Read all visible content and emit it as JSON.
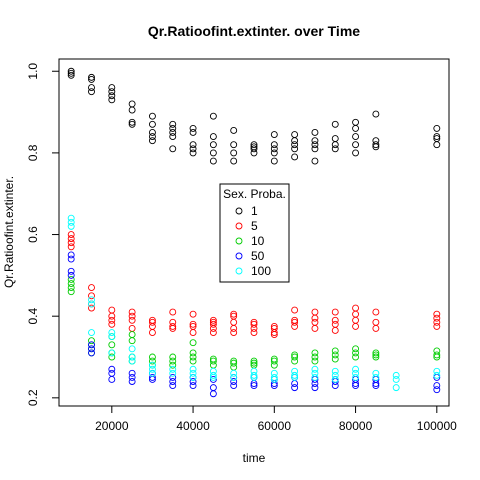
{
  "chart_data": {
    "type": "scatter",
    "title": "Qr.Ratioofint.extinter. over Time",
    "xlabel": "time",
    "ylabel": "Qr.Ratioofint.extinter.",
    "xlim": [
      7000,
      103000
    ],
    "ylim": [
      0.18,
      1.03
    ],
    "xticks": [
      20000,
      40000,
      60000,
      80000,
      100000
    ],
    "yticks": [
      0.2,
      0.4,
      0.6,
      0.8,
      1.0
    ],
    "ytick_labels": [
      "0.2",
      "0.4",
      "0.6",
      "0.8",
      "1.0"
    ],
    "grid": false,
    "legend": {
      "title": "Sex. Proba.",
      "placement": "center"
    },
    "series": [
      {
        "name": "1",
        "color": "#000000",
        "points": [
          [
            10000,
            1.0
          ],
          [
            10000,
            0.995
          ],
          [
            10000,
            0.99
          ],
          [
            15000,
            0.985
          ],
          [
            15000,
            0.98
          ],
          [
            15000,
            0.96
          ],
          [
            15000,
            0.95
          ],
          [
            20000,
            0.96
          ],
          [
            20000,
            0.95
          ],
          [
            20000,
            0.94
          ],
          [
            20000,
            0.93
          ],
          [
            25000,
            0.92
          ],
          [
            25000,
            0.905
          ],
          [
            25000,
            0.875
          ],
          [
            25000,
            0.87
          ],
          [
            30000,
            0.89
          ],
          [
            30000,
            0.87
          ],
          [
            30000,
            0.85
          ],
          [
            30000,
            0.84
          ],
          [
            30000,
            0.83
          ],
          [
            35000,
            0.87
          ],
          [
            35000,
            0.86
          ],
          [
            35000,
            0.85
          ],
          [
            35000,
            0.84
          ],
          [
            35000,
            0.81
          ],
          [
            40000,
            0.86
          ],
          [
            40000,
            0.85
          ],
          [
            40000,
            0.82
          ],
          [
            40000,
            0.81
          ],
          [
            40000,
            0.8
          ],
          [
            45000,
            0.89
          ],
          [
            45000,
            0.84
          ],
          [
            45000,
            0.82
          ],
          [
            45000,
            0.8
          ],
          [
            45000,
            0.78
          ],
          [
            50000,
            0.855
          ],
          [
            50000,
            0.82
          ],
          [
            50000,
            0.8
          ],
          [
            50000,
            0.78
          ],
          [
            55000,
            0.82
          ],
          [
            55000,
            0.815
          ],
          [
            55000,
            0.81
          ],
          [
            55000,
            0.8
          ],
          [
            60000,
            0.845
          ],
          [
            60000,
            0.82
          ],
          [
            60000,
            0.81
          ],
          [
            60000,
            0.8
          ],
          [
            60000,
            0.78
          ],
          [
            65000,
            0.845
          ],
          [
            65000,
            0.83
          ],
          [
            65000,
            0.82
          ],
          [
            65000,
            0.81
          ],
          [
            65000,
            0.79
          ],
          [
            70000,
            0.85
          ],
          [
            70000,
            0.83
          ],
          [
            70000,
            0.82
          ],
          [
            70000,
            0.81
          ],
          [
            70000,
            0.78
          ],
          [
            75000,
            0.87
          ],
          [
            75000,
            0.835
          ],
          [
            75000,
            0.82
          ],
          [
            75000,
            0.81
          ],
          [
            80000,
            0.875
          ],
          [
            80000,
            0.86
          ],
          [
            80000,
            0.84
          ],
          [
            80000,
            0.82
          ],
          [
            80000,
            0.8
          ],
          [
            85000,
            0.895
          ],
          [
            85000,
            0.83
          ],
          [
            85000,
            0.82
          ],
          [
            85000,
            0.815
          ],
          [
            100000,
            0.86
          ],
          [
            100000,
            0.84
          ],
          [
            100000,
            0.835
          ],
          [
            100000,
            0.82
          ]
        ]
      },
      {
        "name": "5",
        "color": "#ff0000",
        "points": [
          [
            10000,
            0.6
          ],
          [
            10000,
            0.59
          ],
          [
            10000,
            0.58
          ],
          [
            10000,
            0.57
          ],
          [
            15000,
            0.47
          ],
          [
            15000,
            0.45
          ],
          [
            15000,
            0.43
          ],
          [
            15000,
            0.42
          ],
          [
            20000,
            0.415
          ],
          [
            20000,
            0.4
          ],
          [
            20000,
            0.39
          ],
          [
            20000,
            0.38
          ],
          [
            25000,
            0.41
          ],
          [
            25000,
            0.4
          ],
          [
            25000,
            0.39
          ],
          [
            25000,
            0.37
          ],
          [
            30000,
            0.39
          ],
          [
            30000,
            0.385
          ],
          [
            30000,
            0.375
          ],
          [
            30000,
            0.36
          ],
          [
            35000,
            0.41
          ],
          [
            35000,
            0.385
          ],
          [
            35000,
            0.375
          ],
          [
            35000,
            0.37
          ],
          [
            40000,
            0.405
          ],
          [
            40000,
            0.38
          ],
          [
            40000,
            0.375
          ],
          [
            40000,
            0.36
          ],
          [
            45000,
            0.39
          ],
          [
            45000,
            0.385
          ],
          [
            45000,
            0.38
          ],
          [
            45000,
            0.37
          ],
          [
            45000,
            0.36
          ],
          [
            50000,
            0.405
          ],
          [
            50000,
            0.4
          ],
          [
            50000,
            0.385
          ],
          [
            50000,
            0.37
          ],
          [
            50000,
            0.36
          ],
          [
            55000,
            0.385
          ],
          [
            55000,
            0.38
          ],
          [
            55000,
            0.37
          ],
          [
            55000,
            0.36
          ],
          [
            60000,
            0.375
          ],
          [
            60000,
            0.37
          ],
          [
            60000,
            0.36
          ],
          [
            60000,
            0.355
          ],
          [
            65000,
            0.415
          ],
          [
            65000,
            0.39
          ],
          [
            65000,
            0.385
          ],
          [
            65000,
            0.375
          ],
          [
            70000,
            0.41
          ],
          [
            70000,
            0.395
          ],
          [
            70000,
            0.385
          ],
          [
            70000,
            0.37
          ],
          [
            75000,
            0.41
          ],
          [
            75000,
            0.39
          ],
          [
            75000,
            0.38
          ],
          [
            75000,
            0.365
          ],
          [
            80000,
            0.42
          ],
          [
            80000,
            0.405
          ],
          [
            80000,
            0.39
          ],
          [
            80000,
            0.375
          ],
          [
            85000,
            0.41
          ],
          [
            85000,
            0.385
          ],
          [
            85000,
            0.37
          ],
          [
            100000,
            0.405
          ],
          [
            100000,
            0.395
          ],
          [
            100000,
            0.385
          ],
          [
            100000,
            0.375
          ]
        ]
      },
      {
        "name": "10",
        "color": "#00cd00",
        "points": [
          [
            10000,
            0.49
          ],
          [
            10000,
            0.48
          ],
          [
            10000,
            0.47
          ],
          [
            10000,
            0.46
          ],
          [
            15000,
            0.34
          ],
          [
            15000,
            0.33
          ],
          [
            15000,
            0.32
          ],
          [
            15000,
            0.31
          ],
          [
            20000,
            0.35
          ],
          [
            20000,
            0.33
          ],
          [
            20000,
            0.31
          ],
          [
            20000,
            0.3
          ],
          [
            25000,
            0.355
          ],
          [
            25000,
            0.34
          ],
          [
            25000,
            0.3
          ],
          [
            25000,
            0.29
          ],
          [
            30000,
            0.3
          ],
          [
            30000,
            0.29
          ],
          [
            30000,
            0.28
          ],
          [
            35000,
            0.3
          ],
          [
            35000,
            0.29
          ],
          [
            35000,
            0.28
          ],
          [
            40000,
            0.335
          ],
          [
            40000,
            0.31
          ],
          [
            40000,
            0.3
          ],
          [
            40000,
            0.29
          ],
          [
            45000,
            0.295
          ],
          [
            45000,
            0.29
          ],
          [
            45000,
            0.28
          ],
          [
            50000,
            0.29
          ],
          [
            50000,
            0.285
          ],
          [
            50000,
            0.275
          ],
          [
            55000,
            0.29
          ],
          [
            55000,
            0.285
          ],
          [
            55000,
            0.28
          ],
          [
            60000,
            0.295
          ],
          [
            60000,
            0.29
          ],
          [
            60000,
            0.28
          ],
          [
            65000,
            0.305
          ],
          [
            65000,
            0.3
          ],
          [
            65000,
            0.29
          ],
          [
            70000,
            0.31
          ],
          [
            70000,
            0.3
          ],
          [
            70000,
            0.29
          ],
          [
            75000,
            0.315
          ],
          [
            75000,
            0.305
          ],
          [
            75000,
            0.295
          ],
          [
            80000,
            0.32
          ],
          [
            80000,
            0.31
          ],
          [
            80000,
            0.3
          ],
          [
            85000,
            0.31
          ],
          [
            85000,
            0.305
          ],
          [
            85000,
            0.3
          ],
          [
            100000,
            0.315
          ],
          [
            100000,
            0.305
          ],
          [
            100000,
            0.3
          ]
        ]
      },
      {
        "name": "50",
        "color": "#0000ff",
        "points": [
          [
            10000,
            0.55
          ],
          [
            10000,
            0.54
          ],
          [
            10000,
            0.51
          ],
          [
            10000,
            0.5
          ],
          [
            15000,
            0.33
          ],
          [
            15000,
            0.32
          ],
          [
            15000,
            0.31
          ],
          [
            20000,
            0.27
          ],
          [
            20000,
            0.26
          ],
          [
            20000,
            0.245
          ],
          [
            25000,
            0.26
          ],
          [
            25000,
            0.25
          ],
          [
            25000,
            0.24
          ],
          [
            30000,
            0.26
          ],
          [
            30000,
            0.25
          ],
          [
            30000,
            0.245
          ],
          [
            35000,
            0.25
          ],
          [
            35000,
            0.24
          ],
          [
            35000,
            0.23
          ],
          [
            40000,
            0.25
          ],
          [
            40000,
            0.24
          ],
          [
            40000,
            0.23
          ],
          [
            45000,
            0.245
          ],
          [
            45000,
            0.225
          ],
          [
            45000,
            0.21
          ],
          [
            50000,
            0.25
          ],
          [
            50000,
            0.24
          ],
          [
            50000,
            0.23
          ],
          [
            55000,
            0.25
          ],
          [
            55000,
            0.235
          ],
          [
            55000,
            0.23
          ],
          [
            60000,
            0.245
          ],
          [
            60000,
            0.235
          ],
          [
            60000,
            0.23
          ],
          [
            65000,
            0.25
          ],
          [
            65000,
            0.235
          ],
          [
            65000,
            0.225
          ],
          [
            70000,
            0.245
          ],
          [
            70000,
            0.235
          ],
          [
            70000,
            0.225
          ],
          [
            75000,
            0.245
          ],
          [
            75000,
            0.24
          ],
          [
            75000,
            0.23
          ],
          [
            80000,
            0.245
          ],
          [
            80000,
            0.235
          ],
          [
            80000,
            0.23
          ],
          [
            85000,
            0.245
          ],
          [
            85000,
            0.235
          ],
          [
            85000,
            0.23
          ],
          [
            100000,
            0.25
          ],
          [
            100000,
            0.23
          ],
          [
            100000,
            0.22
          ]
        ]
      },
      {
        "name": "100",
        "color": "#00ffff",
        "points": [
          [
            10000,
            0.64
          ],
          [
            10000,
            0.63
          ],
          [
            10000,
            0.62
          ],
          [
            15000,
            0.44
          ],
          [
            15000,
            0.43
          ],
          [
            15000,
            0.36
          ],
          [
            20000,
            0.36
          ],
          [
            20000,
            0.35
          ],
          [
            20000,
            0.31
          ],
          [
            25000,
            0.32
          ],
          [
            25000,
            0.3
          ],
          [
            25000,
            0.29
          ],
          [
            30000,
            0.28
          ],
          [
            30000,
            0.27
          ],
          [
            30000,
            0.26
          ],
          [
            35000,
            0.27
          ],
          [
            35000,
            0.26
          ],
          [
            40000,
            0.27
          ],
          [
            40000,
            0.26
          ],
          [
            40000,
            0.25
          ],
          [
            45000,
            0.265
          ],
          [
            45000,
            0.255
          ],
          [
            45000,
            0.25
          ],
          [
            50000,
            0.26
          ],
          [
            50000,
            0.25
          ],
          [
            55000,
            0.265
          ],
          [
            55000,
            0.255
          ],
          [
            55000,
            0.25
          ],
          [
            60000,
            0.26
          ],
          [
            60000,
            0.25
          ],
          [
            60000,
            0.245
          ],
          [
            65000,
            0.265
          ],
          [
            65000,
            0.255
          ],
          [
            65000,
            0.25
          ],
          [
            70000,
            0.27
          ],
          [
            70000,
            0.26
          ],
          [
            70000,
            0.25
          ],
          [
            75000,
            0.265
          ],
          [
            75000,
            0.255
          ],
          [
            75000,
            0.245
          ],
          [
            80000,
            0.27
          ],
          [
            80000,
            0.26
          ],
          [
            80000,
            0.25
          ],
          [
            85000,
            0.26
          ],
          [
            85000,
            0.25
          ],
          [
            90000,
            0.255
          ],
          [
            90000,
            0.245
          ],
          [
            90000,
            0.225
          ],
          [
            100000,
            0.265
          ],
          [
            100000,
            0.255
          ]
        ]
      }
    ]
  }
}
